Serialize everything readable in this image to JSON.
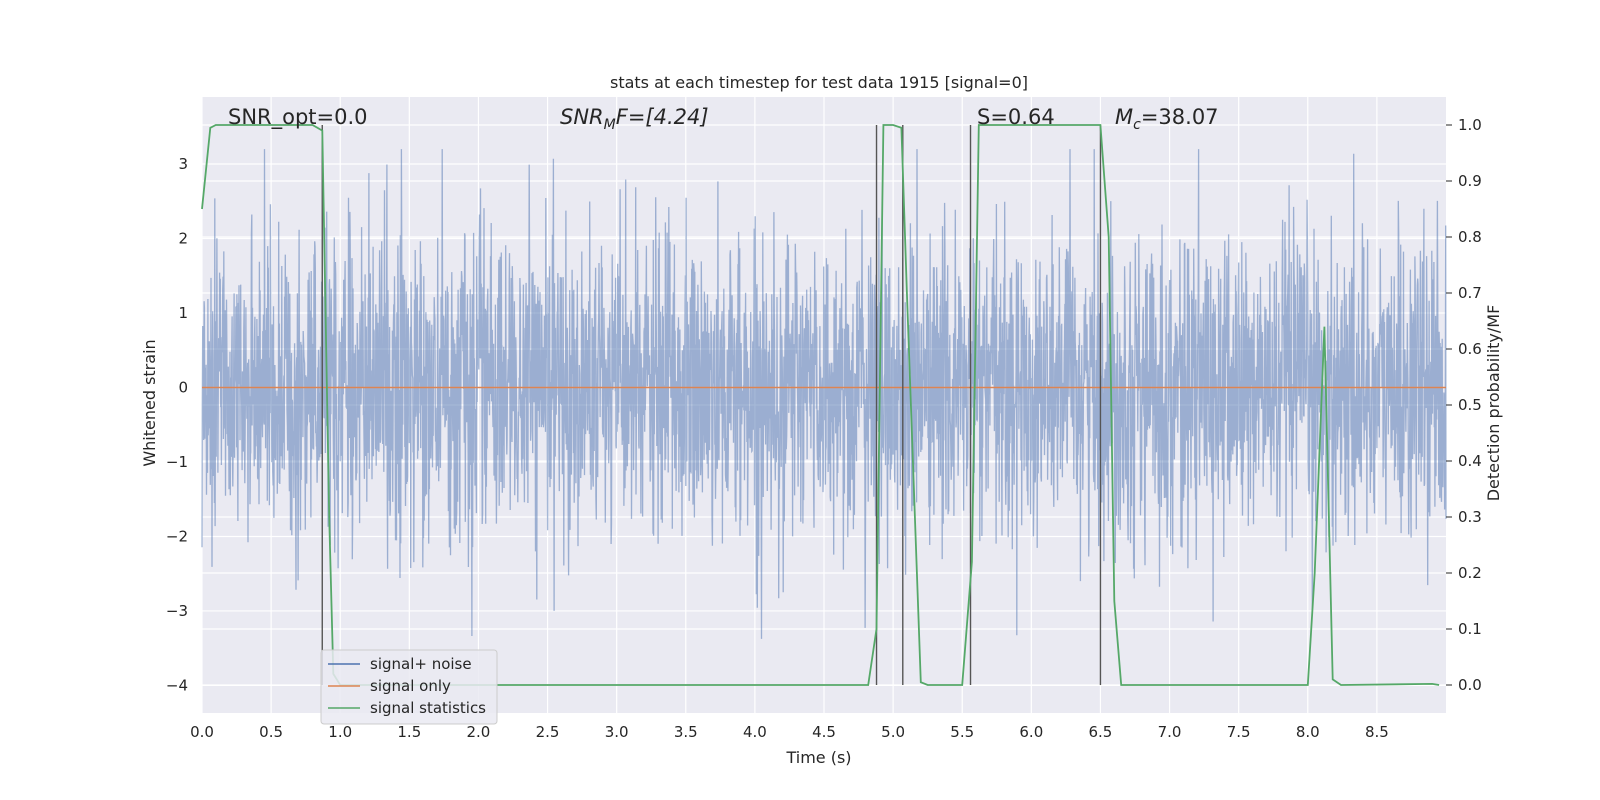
{
  "chart_data": {
    "type": "line",
    "title": "stats at each timestep for test data 1915 [signal=0]",
    "xlabel": "Time (s)",
    "ylabel": "Whitened strain",
    "y2label": "Detection probability/MF",
    "xlim": [
      0.0,
      9.0
    ],
    "ylim": [
      -4.37,
      3.9
    ],
    "y2lim": [
      -0.05,
      1.05
    ],
    "x_ticks": [
      0.0,
      0.5,
      1.0,
      1.5,
      2.0,
      2.5,
      3.0,
      3.5,
      4.0,
      4.5,
      5.0,
      5.5,
      6.0,
      6.5,
      7.0,
      7.5,
      8.0,
      8.5
    ],
    "x_tick_labels": [
      "0.0",
      "0.5",
      "1.0",
      "1.5",
      "2.0",
      "2.5",
      "3.0",
      "3.5",
      "4.0",
      "4.5",
      "5.0",
      "5.5",
      "6.0",
      "6.5",
      "7.0",
      "7.5",
      "8.0",
      "8.5"
    ],
    "y_ticks": [
      -4,
      -3,
      -2,
      -1,
      0,
      1,
      2,
      3
    ],
    "y_tick_labels": [
      "−4",
      "−3",
      "−2",
      "−1",
      "0",
      "1",
      "2",
      "3"
    ],
    "y2_ticks": [
      0.0,
      0.1,
      0.2,
      0.3,
      0.4,
      0.5,
      0.6,
      0.7,
      0.8,
      0.9,
      1.0
    ],
    "y2_tick_labels": [
      "0.0",
      "0.1",
      "0.2",
      "0.3",
      "0.4",
      "0.5",
      "0.6",
      "0.7",
      "0.8",
      "0.9",
      "1.0"
    ],
    "grid": true,
    "legend_position": "bottom-left",
    "annotations": {
      "snr_opt": "SNR_opt=0.0",
      "snr_mf_prefix": "SNR",
      "snr_mf_sub": "M",
      "snr_mf_suffix": "F=[4.24]",
      "s": "S=0.64",
      "mc_prefix": "M",
      "mc_sub": "c",
      "mc_suffix": "=38.07"
    },
    "series": [
      {
        "name": "signal+ noise",
        "color": "#4c72b0",
        "description": "whitened strain noise, roughly Gaussian, peaks near ±3.5",
        "sample_rate_hz": 400,
        "amplitude_std": 1.0,
        "peak_range": [
          -3.8,
          3.2
        ]
      },
      {
        "name": "signal only",
        "color": "#dd8452",
        "x": [
          0.0,
          9.0
        ],
        "y": [
          0.0,
          0.0
        ]
      },
      {
        "name": "signal statistics",
        "color": "#55a868",
        "axis": "right",
        "x": [
          0.0,
          0.06,
          0.1,
          0.8,
          0.87,
          0.92,
          0.95,
          1.0,
          4.82,
          4.88,
          4.93,
          5.0,
          5.06,
          5.1,
          5.2,
          5.25,
          5.5,
          5.57,
          5.62,
          6.5,
          6.56,
          6.6,
          6.65,
          8.0,
          8.05,
          8.12,
          8.18,
          8.24,
          8.9,
          8.95
        ],
        "y": [
          0.85,
          0.995,
          1.0,
          1.0,
          0.99,
          0.3,
          0.02,
          0.0,
          0.0,
          0.1,
          1.0,
          1.0,
          0.995,
          0.7,
          0.005,
          0.0,
          0.0,
          0.22,
          1.0,
          1.0,
          0.8,
          0.15,
          0.0,
          0.0,
          0.2,
          0.64,
          0.01,
          0.0,
          0.002,
          0.0
        ]
      }
    ],
    "vlines": [
      0.87,
      4.88,
      5.07,
      5.56,
      6.5
    ],
    "vline_color": "#555555"
  }
}
